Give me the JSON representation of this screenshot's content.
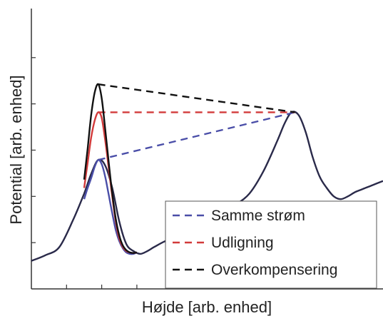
{
  "chart_data": {
    "type": "line",
    "xlabel": "Højde [arb. enhed]",
    "ylabel": "Potential [arb. enhed]",
    "xlim": [
      0,
      10
    ],
    "ylim": [
      0,
      10
    ],
    "grid": false,
    "legend_position": "bottom-right",
    "base_curve": {
      "x": [
        0.0,
        0.4,
        0.8,
        1.2,
        1.5,
        1.7,
        1.9,
        2.1,
        2.3,
        2.5,
        2.7,
        2.9,
        3.1,
        3.3,
        3.5,
        3.8,
        4.2,
        4.6,
        5.0,
        5.4,
        5.8,
        6.2,
        6.6,
        7.0,
        7.2,
        7.4,
        7.6,
        7.8,
        8.0,
        8.2,
        8.4,
        8.6,
        8.8,
        9.0,
        9.2,
        9.4,
        9.7,
        10.0
      ],
      "y": [
        1.0,
        1.2,
        1.5,
        2.5,
        3.4,
        4.1,
        4.6,
        4.4,
        3.6,
        2.4,
        1.6,
        1.35,
        1.25,
        1.35,
        1.5,
        1.7,
        1.9,
        2.15,
        2.45,
        2.7,
        3.0,
        3.4,
        4.2,
        5.3,
        5.9,
        6.3,
        6.2,
        5.6,
        4.7,
        4.0,
        3.6,
        3.3,
        3.2,
        3.3,
        3.45,
        3.55,
        3.7,
        3.85
      ]
    },
    "series": [
      {
        "name": "Samme strøm",
        "color": "#4a4ea8",
        "x": [
          1.5,
          1.6,
          1.7,
          1.8,
          1.9,
          2.0,
          2.1,
          2.2,
          2.3,
          2.4,
          2.5,
          2.6,
          2.7,
          2.8,
          2.9,
          3.0
        ],
        "y": [
          3.2,
          3.6,
          3.95,
          4.35,
          4.6,
          4.45,
          4.0,
          3.35,
          2.7,
          2.1,
          1.7,
          1.45,
          1.3,
          1.25,
          1.25,
          1.3
        ],
        "dashed_link": {
          "x": [
            1.9,
            7.5
          ],
          "y": [
            4.6,
            6.3
          ]
        }
      },
      {
        "name": "Udligning",
        "color": "#d23a3a",
        "x": [
          1.5,
          1.6,
          1.7,
          1.8,
          1.9,
          2.0,
          2.1,
          2.2,
          2.3,
          2.4,
          2.5,
          2.6,
          2.7,
          2.8,
          2.9,
          3.0
        ],
        "y": [
          3.6,
          4.5,
          5.4,
          6.0,
          6.3,
          6.1,
          5.3,
          4.3,
          3.3,
          2.4,
          1.8,
          1.5,
          1.35,
          1.3,
          1.28,
          1.3
        ],
        "dashed_link": {
          "x": [
            1.9,
            7.5
          ],
          "y": [
            6.3,
            6.3
          ]
        }
      },
      {
        "name": "Overkompensering",
        "color": "#111111",
        "x": [
          1.5,
          1.6,
          1.7,
          1.8,
          1.9,
          2.0,
          2.1,
          2.2,
          2.3,
          2.4,
          2.5,
          2.6,
          2.7,
          2.8,
          2.9,
          3.0
        ],
        "y": [
          3.9,
          5.0,
          6.2,
          7.0,
          7.3,
          6.8,
          5.7,
          4.5,
          3.4,
          2.5,
          1.9,
          1.55,
          1.38,
          1.3,
          1.28,
          1.3
        ],
        "dashed_link": {
          "x": [
            1.9,
            7.5
          ],
          "y": [
            7.3,
            6.3
          ]
        }
      }
    ]
  }
}
